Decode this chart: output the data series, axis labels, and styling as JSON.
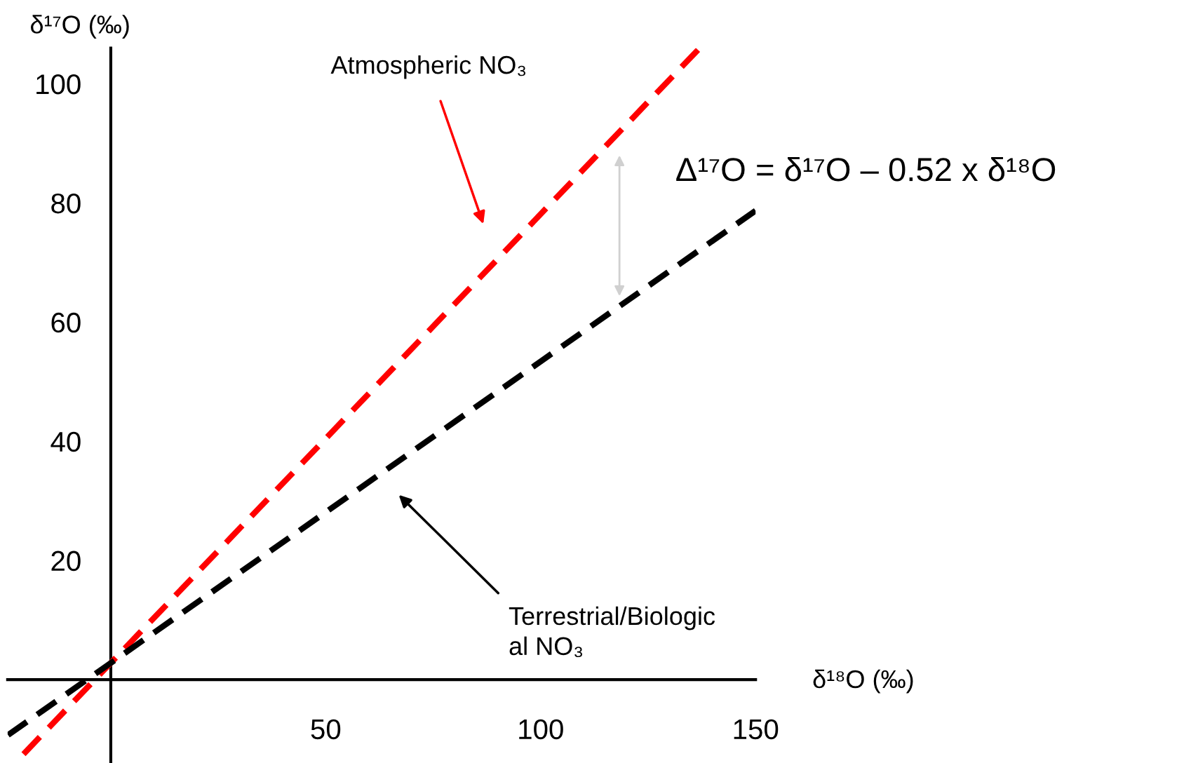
{
  "chart_data": {
    "type": "line",
    "series": [
      {
        "color": "#ff0000",
        "x": [
          -20.3,
          136.6
        ],
        "values": [
          -12.5,
          105.7
        ]
      },
      {
        "color": "#000000",
        "x": [
          -23.9,
          150
        ],
        "values": [
          -9.3,
          78.7
        ]
      }
    ],
    "xlabel": "δ¹⁸O (‰)",
    "ylabel": "δ¹⁷O (‰)",
    "xlim": [
      -24,
      150
    ],
    "ylim": [
      -14,
      106
    ],
    "xticks": [
      50,
      100,
      150
    ],
    "yticks": [
      20,
      40,
      60,
      80,
      100
    ],
    "line_style": "dashed",
    "grid": false,
    "legend": false,
    "annotations": [
      "Atmospheric NO₃",
      "Terrestrial/Biologic\nal NO₃",
      "Δ¹⁷O = δ¹⁷O – 0.52 x δ¹⁸O"
    ]
  }
}
